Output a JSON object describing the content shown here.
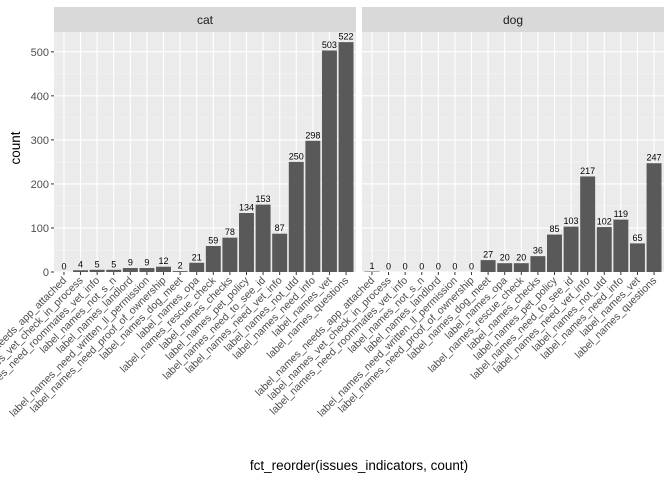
{
  "chart_data": {
    "type": "bar",
    "xlabel": "fct_reorder(issues_indicators, count)",
    "ylabel": "count",
    "ylim": [
      0,
      545
    ],
    "yticks": [
      0,
      100,
      200,
      300,
      400,
      500
    ],
    "grid": true,
    "legend": "none",
    "colors": {
      "bar": "#595959",
      "panel_bg": "#ebebeb",
      "grid_major": "#ffffff",
      "strip_bg": "#d9d9d9"
    },
    "categories": [
      "label_names_needs_app_attached",
      "label_names_vet_check_in_process",
      "label_names_need_roommates_vet_info",
      "label_names_not_s_n",
      "label_names_landlord",
      "label_names_need_written_ll_permission",
      "label_names_need_proof_of_ownership",
      "label_names_dog_meet",
      "label_names_opa",
      "label_names_rescue_check",
      "label_names_checks",
      "label_names_pet_policy",
      "label_names_need_to_see_id",
      "label_names_need_vet_info",
      "label_names_not_utd",
      "label_names_need_info",
      "label_names_vet",
      "label_names_questions"
    ],
    "panels": [
      {
        "name": "cat",
        "values": [
          0,
          4,
          5,
          5,
          9,
          9,
          12,
          2,
          21,
          59,
          78,
          134,
          153,
          87,
          250,
          298,
          503,
          522
        ]
      },
      {
        "name": "dog",
        "values": [
          1,
          0,
          0,
          0,
          0,
          0,
          0,
          27,
          20,
          20,
          36,
          85,
          103,
          217,
          102,
          119,
          65,
          247
        ]
      }
    ]
  }
}
